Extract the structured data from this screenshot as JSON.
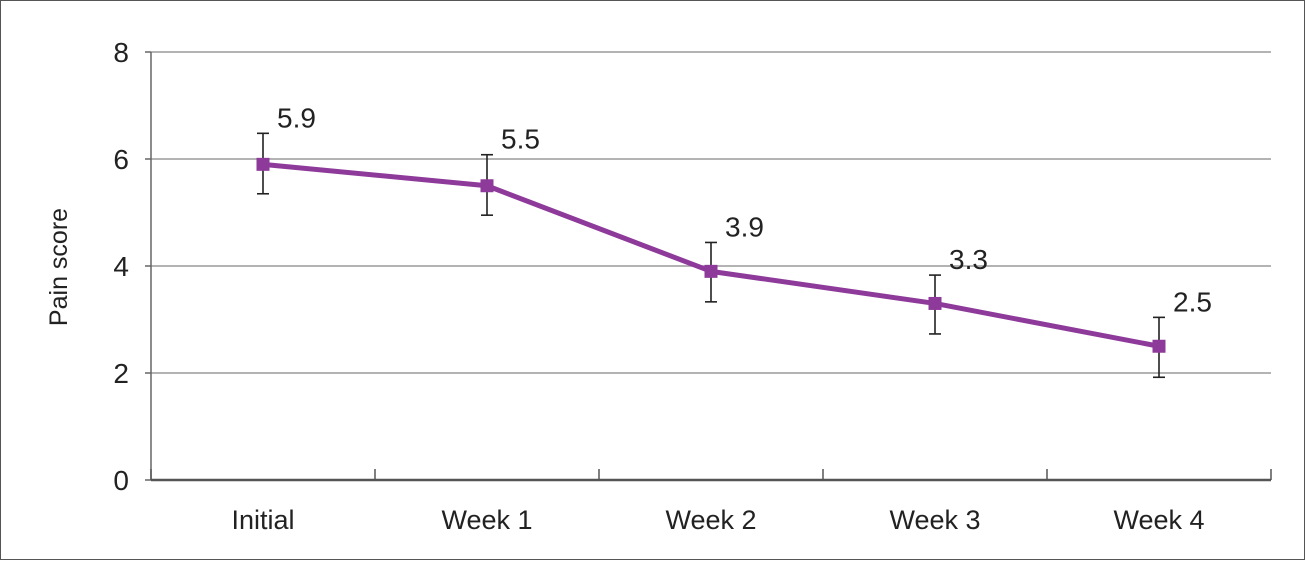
{
  "chart_data": {
    "type": "line",
    "title": "",
    "xlabel": "",
    "ylabel": "Pain score",
    "ylim": [
      0,
      8
    ],
    "yticks": [
      0,
      2,
      4,
      6,
      8
    ],
    "grid": true,
    "legend": "none",
    "categories": [
      "Initial",
      "Week 1",
      "Week 2",
      "Week 3",
      "Week 4"
    ],
    "series": [
      {
        "values": [
          5.9,
          5.5,
          3.9,
          3.3,
          2.5
        ],
        "error_low": [
          5.35,
          4.95,
          3.33,
          2.73,
          1.92
        ],
        "error_high": [
          6.48,
          6.08,
          4.44,
          3.83,
          3.04
        ],
        "data_labels": [
          "5.9",
          "5.5",
          "3.9",
          "3.3",
          "2.5"
        ],
        "color": "#8e3a9a"
      }
    ]
  }
}
